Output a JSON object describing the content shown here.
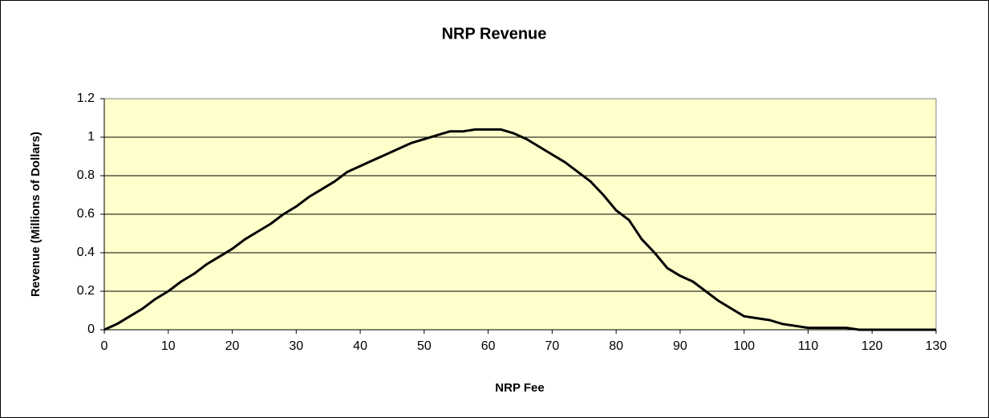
{
  "chart_data": {
    "type": "line",
    "title": "NRP Revenue",
    "x_label": "NRP Fee",
    "y_label": "Revenue (Millions of Dollars)",
    "x": [
      0,
      2,
      4,
      6,
      8,
      10,
      12,
      14,
      16,
      18,
      20,
      22,
      24,
      26,
      28,
      30,
      32,
      34,
      36,
      38,
      40,
      42,
      44,
      46,
      48,
      50,
      52,
      54,
      56,
      58,
      60,
      62,
      64,
      66,
      68,
      70,
      72,
      74,
      76,
      78,
      80,
      82,
      84,
      86,
      88,
      90,
      92,
      94,
      96,
      98,
      100,
      102,
      104,
      106,
      108,
      110,
      112,
      114,
      116,
      118,
      120,
      122,
      124,
      126,
      128,
      130
    ],
    "series": [
      {
        "name": "Revenue",
        "color": "#000000",
        "values": [
          0,
          0.03,
          0.07,
          0.11,
          0.16,
          0.2,
          0.25,
          0.29,
          0.34,
          0.38,
          0.42,
          0.47,
          0.51,
          0.55,
          0.6,
          0.64,
          0.69,
          0.73,
          0.77,
          0.82,
          0.85,
          0.88,
          0.91,
          0.94,
          0.97,
          0.99,
          1.01,
          1.03,
          1.03,
          1.04,
          1.04,
          1.04,
          1.02,
          0.99,
          0.95,
          0.91,
          0.87,
          0.82,
          0.77,
          0.7,
          0.62,
          0.57,
          0.47,
          0.4,
          0.32,
          0.28,
          0.25,
          0.2,
          0.15,
          0.11,
          0.07,
          0.06,
          0.05,
          0.03,
          0.02,
          0.01,
          0.01,
          0.01,
          0.01,
          0,
          0,
          0,
          0,
          0,
          0,
          0
        ]
      }
    ],
    "xlim": [
      0,
      130
    ],
    "xticks": [
      0,
      10,
      20,
      30,
      40,
      50,
      60,
      70,
      80,
      90,
      100,
      110,
      120,
      130
    ],
    "ylim": [
      0,
      1.2
    ],
    "yticks": [
      0,
      0.2,
      0.4,
      0.6,
      0.8,
      1,
      1.2
    ],
    "grid": true,
    "plot_background": "#ffffcc"
  }
}
